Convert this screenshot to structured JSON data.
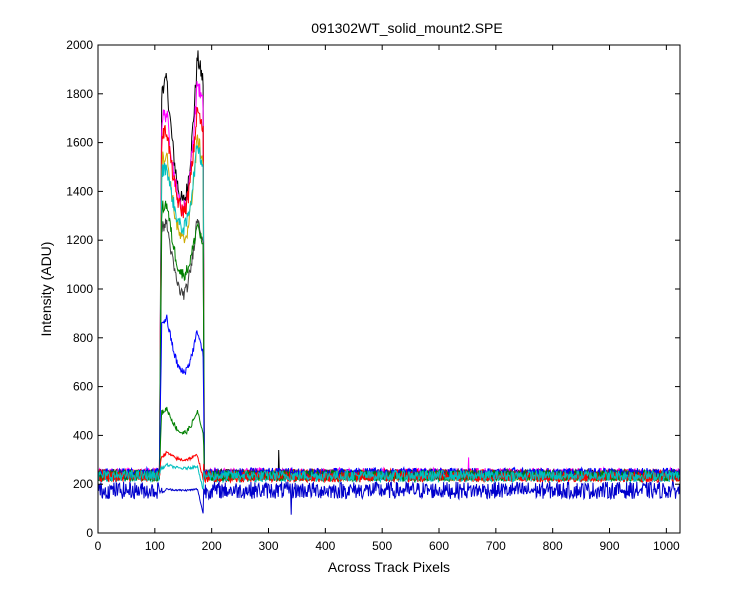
{
  "chart_data": {
    "type": "line",
    "title": "091302WT_solid_mount2.SPE",
    "xlabel": "Across Track Pixels",
    "ylabel": "Intensity (ADU)",
    "xlim": [
      0,
      1024
    ],
    "ylim": [
      0,
      2000
    ],
    "xticks": [
      0,
      100,
      200,
      300,
      400,
      500,
      600,
      700,
      800,
      900,
      1000
    ],
    "yticks": [
      0,
      200,
      400,
      600,
      800,
      1000,
      1200,
      1400,
      1600,
      1800,
      2000
    ],
    "grid": false,
    "legend": "none",
    "note_pattern": "each trace: flat baseline, plateau between x=110 and x=185 with peaks near x=120 and x=175 and a dip near x=150",
    "series": [
      {
        "color": "#000000",
        "baseline": 240,
        "plateau_x": [
          110,
          185
        ],
        "peak_left": [
          121,
          1850
        ],
        "dip": [
          150,
          1360
        ],
        "peak_right": [
          175,
          1950
        ]
      },
      {
        "color": "#ff00ff",
        "baseline": 245,
        "plateau_x": [
          110,
          185
        ],
        "peak_left": [
          121,
          1720
        ],
        "dip": [
          150,
          1330
        ],
        "peak_right": [
          175,
          1850
        ]
      },
      {
        "color": "#ff0000",
        "baseline": 240,
        "plateau_x": [
          110,
          185
        ],
        "peak_left": [
          121,
          1650
        ],
        "dip": [
          150,
          1320
        ],
        "peak_right": [
          175,
          1740
        ]
      },
      {
        "color": "#ccaa00",
        "baseline": 235,
        "plateau_x": [
          110,
          185
        ],
        "peak_left": [
          121,
          1550
        ],
        "dip": [
          150,
          1200
        ],
        "peak_right": [
          175,
          1620
        ]
      },
      {
        "color": "#00bfbf",
        "baseline": 230,
        "plateau_x": [
          110,
          185
        ],
        "peak_left": [
          121,
          1500
        ],
        "dip": [
          150,
          1250
        ],
        "peak_right": [
          175,
          1600
        ]
      },
      {
        "color": "#404040",
        "baseline": 240,
        "plateau_x": [
          110,
          185
        ],
        "peak_left": [
          121,
          1270
        ],
        "dip": [
          150,
          980
        ],
        "peak_right": [
          175,
          1300
        ]
      },
      {
        "color": "#008000",
        "baseline": 235,
        "plateau_x": [
          110,
          185
        ],
        "peak_left": [
          121,
          1350
        ],
        "dip": [
          150,
          1060
        ],
        "peak_right": [
          175,
          1270
        ]
      },
      {
        "color": "#0000ff",
        "baseline": 245,
        "plateau_x": [
          110,
          185
        ],
        "peak_left": [
          121,
          880
        ],
        "dip": [
          150,
          660
        ],
        "peak_right": [
          175,
          830
        ]
      },
      {
        "color": "#008000",
        "baseline": 235,
        "plateau_x": [
          110,
          185
        ],
        "peak_left": [
          121,
          510
        ],
        "dip": [
          150,
          410
        ],
        "peak_right": [
          175,
          500
        ]
      },
      {
        "color": "#ff0000",
        "baseline": 230,
        "plateau_x": [
          110,
          185
        ],
        "peak_left": [
          121,
          330
        ],
        "dip": [
          150,
          300
        ],
        "peak_right": [
          175,
          320
        ]
      },
      {
        "color": "#00bfbf",
        "baseline": 235,
        "plateau_x": [
          110,
          185
        ],
        "peak_left": [
          121,
          280
        ],
        "dip": [
          150,
          265
        ],
        "peak_right": [
          175,
          275
        ]
      },
      {
        "color": "#0000cc",
        "baseline": 175,
        "plateau_x": [
          110,
          185
        ],
        "peak_left": [
          121,
          180
        ],
        "dip": [
          150,
          175
        ],
        "peak_right": [
          175,
          180
        ]
      }
    ]
  }
}
